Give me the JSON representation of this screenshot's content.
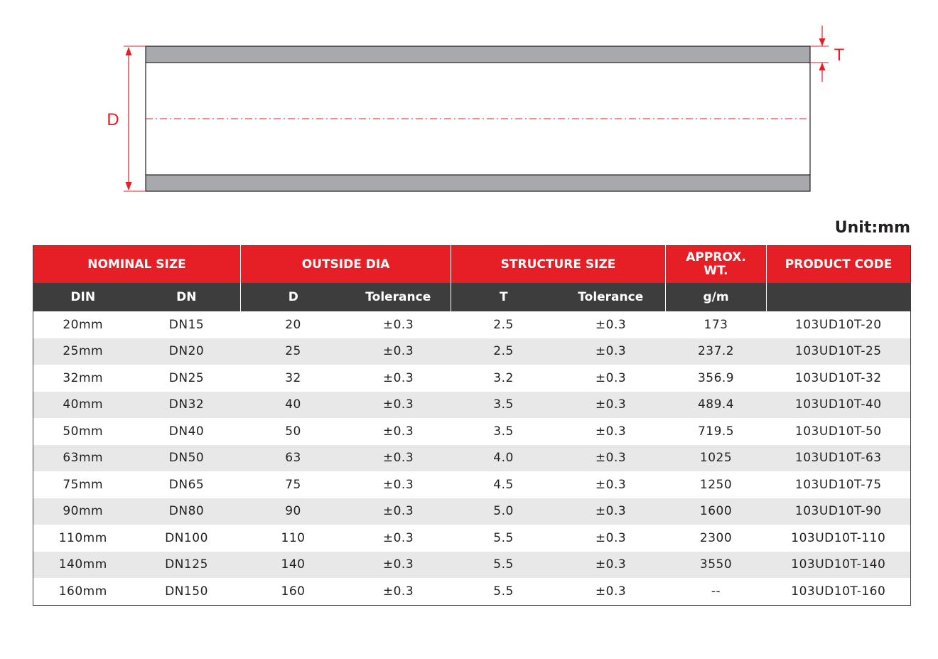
{
  "diagram": {
    "label_d": "D",
    "label_t": "T",
    "colors": {
      "wall": "#a7a9ac",
      "dimension": "#e61e25",
      "outline": "#231f20"
    }
  },
  "unit": "Unit:mm",
  "table": {
    "group_headers": {
      "nominal_size": "NOMINAL SIZE",
      "outside_dia": "OUTSIDE DIA",
      "structure_size": "STRUCTURE SIZE",
      "approx_wt_line1": "APPROX.",
      "approx_wt_line2": "WT.",
      "product_code": "PRODUCT CODE"
    },
    "sub_headers": {
      "din": "DIN",
      "dn": "DN",
      "d": "D",
      "d_tolerance": "Tolerance",
      "t": "T",
      "t_tolerance": "Tolerance",
      "weight_unit": "g/m"
    },
    "rows": [
      [
        "20mm",
        "DN15",
        "20",
        "±0.3",
        "2.5",
        "±0.3",
        "173",
        "103UD10T-20"
      ],
      [
        "25mm",
        "DN20",
        "25",
        "±0.3",
        "2.5",
        "±0.3",
        "237.2",
        "103UD10T-25"
      ],
      [
        "32mm",
        "DN25",
        "32",
        "±0.3",
        "3.2",
        "±0.3",
        "356.9",
        "103UD10T-32"
      ],
      [
        "40mm",
        "DN32",
        "40",
        "±0.3",
        "3.5",
        "±0.3",
        "489.4",
        "103UD10T-40"
      ],
      [
        "50mm",
        "DN40",
        "50",
        "±0.3",
        "3.5",
        "±0.3",
        "719.5",
        "103UD10T-50"
      ],
      [
        "63mm",
        "DN50",
        "63",
        "±0.3",
        "4.0",
        "±0.3",
        "1025",
        "103UD10T-63"
      ],
      [
        "75mm",
        "DN65",
        "75",
        "±0.3",
        "4.5",
        "±0.3",
        "1250",
        "103UD10T-75"
      ],
      [
        "90mm",
        "DN80",
        "90",
        "±0.3",
        "5.0",
        "±0.3",
        "1600",
        "103UD10T-90"
      ],
      [
        "110mm",
        "DN100",
        "110",
        "±0.3",
        "5.5",
        "±0.3",
        "2300",
        "103UD10T-110"
      ],
      [
        "140mm",
        "DN125",
        "140",
        "±0.3",
        "5.5",
        "±0.3",
        "3550",
        "103UD10T-140"
      ],
      [
        "160mm",
        "DN150",
        "160",
        "±0.3",
        "5.5",
        "±0.3",
        "--",
        "103UD10T-160"
      ]
    ]
  }
}
